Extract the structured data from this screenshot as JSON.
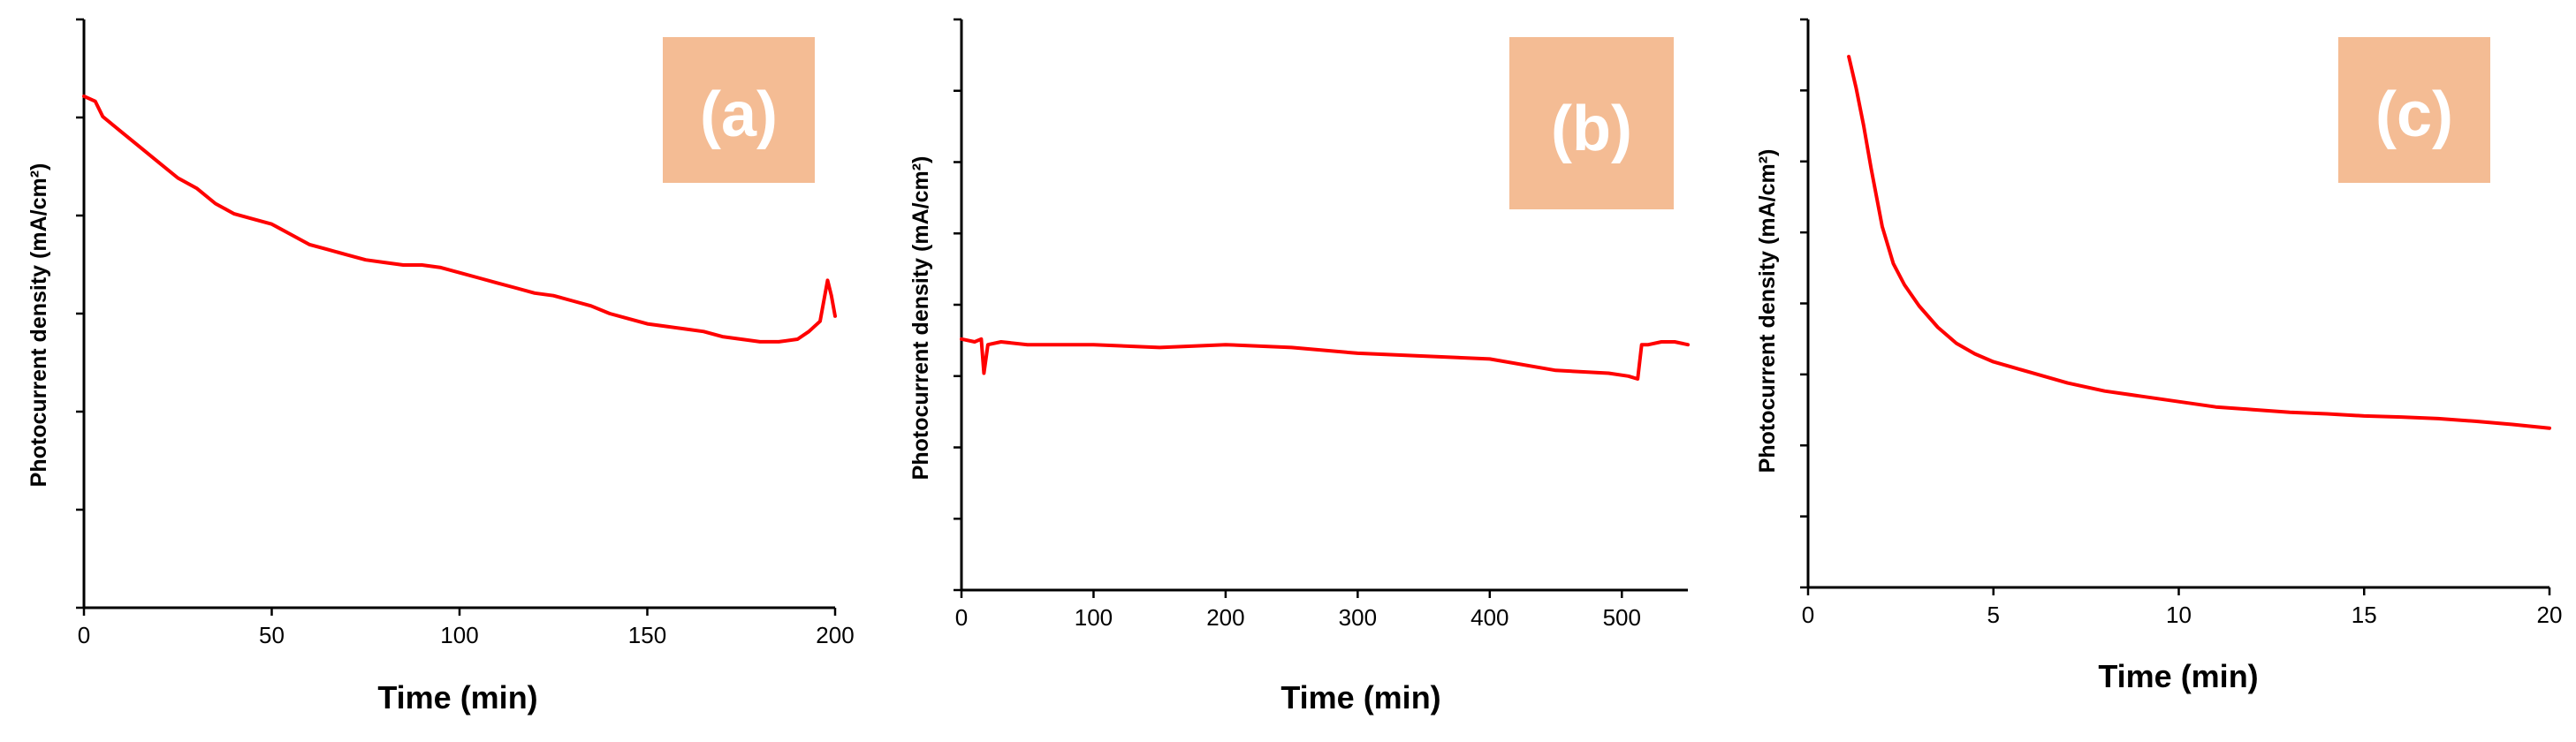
{
  "chart_data": [
    {
      "type": "line",
      "panel_label": "(a)",
      "panel_label_color": "#F4BC94",
      "xlabel": "Time (min)",
      "ylabel": "Photocurrent density (mA/cm²)",
      "xlim": [
        0,
        200
      ],
      "x_ticks": [
        "0",
        "50",
        "100",
        "150",
        "200"
      ],
      "y_tick_labels": "none",
      "series_color": "#FF0000",
      "series": [
        {
          "x": [
            0,
            3,
            5,
            10,
            15,
            20,
            25,
            30,
            35,
            40,
            45,
            50,
            55,
            60,
            65,
            70,
            75,
            80,
            85,
            90,
            95,
            100,
            105,
            110,
            115,
            120,
            125,
            130,
            135,
            140,
            145,
            150,
            155,
            160,
            165,
            170,
            175,
            180,
            185,
            190,
            193,
            196,
            198,
            199,
            200
          ],
          "y": [
            1.0,
            0.99,
            0.96,
            0.93,
            0.9,
            0.87,
            0.84,
            0.82,
            0.79,
            0.77,
            0.76,
            0.75,
            0.73,
            0.71,
            0.7,
            0.69,
            0.68,
            0.675,
            0.67,
            0.67,
            0.665,
            0.655,
            0.645,
            0.635,
            0.625,
            0.615,
            0.61,
            0.6,
            0.59,
            0.575,
            0.565,
            0.555,
            0.55,
            0.545,
            0.54,
            0.53,
            0.525,
            0.52,
            0.52,
            0.525,
            0.54,
            0.56,
            0.64,
            0.61,
            0.57
          ]
        }
      ]
    },
    {
      "type": "line",
      "panel_label": "(b)",
      "panel_label_color": "#F4BC94",
      "xlabel": "Time (min)",
      "ylabel": "Photocurrent density (mA/cm²)",
      "xlim": [
        0,
        550
      ],
      "x_ticks": [
        "0",
        "100",
        "200",
        "300",
        "400",
        "500"
      ],
      "y_tick_labels": "none",
      "series_color": "#FF0000",
      "series": [
        {
          "x": [
            0,
            10,
            15,
            17,
            20,
            30,
            50,
            100,
            150,
            200,
            250,
            300,
            350,
            400,
            450,
            490,
            505,
            512,
            515,
            520,
            530,
            540,
            550
          ],
          "y": [
            0.44,
            0.435,
            0.44,
            0.38,
            0.43,
            0.435,
            0.43,
            0.43,
            0.425,
            0.43,
            0.425,
            0.415,
            0.41,
            0.405,
            0.385,
            0.38,
            0.375,
            0.37,
            0.43,
            0.43,
            0.435,
            0.435,
            0.43
          ]
        }
      ]
    },
    {
      "type": "line",
      "panel_label": "(c)",
      "panel_label_color": "#F4BC94",
      "xlabel": "Time (min)",
      "ylabel": "Photocurrent density (mA/cm²)",
      "xlim": [
        0,
        20
      ],
      "x_ticks": [
        "0",
        "5",
        "10",
        "15",
        "20"
      ],
      "y_tick_labels": "none",
      "series_color": "#FF0000",
      "series": [
        {
          "x": [
            1.1,
            1.3,
            1.5,
            1.7,
            2.0,
            2.3,
            2.6,
            3.0,
            3.5,
            4.0,
            4.5,
            5.0,
            5.5,
            6.0,
            7.0,
            8.0,
            9.0,
            10.0,
            11.0,
            12.0,
            13.0,
            14.0,
            15.0,
            16.0,
            17.0,
            18.0,
            19.0,
            20.0
          ],
          "y": [
            1.0,
            0.94,
            0.87,
            0.79,
            0.68,
            0.61,
            0.57,
            0.53,
            0.49,
            0.46,
            0.44,
            0.425,
            0.415,
            0.405,
            0.385,
            0.37,
            0.36,
            0.35,
            0.34,
            0.335,
            0.33,
            0.327,
            0.323,
            0.321,
            0.318,
            0.313,
            0.307,
            0.3
          ]
        }
      ]
    }
  ]
}
